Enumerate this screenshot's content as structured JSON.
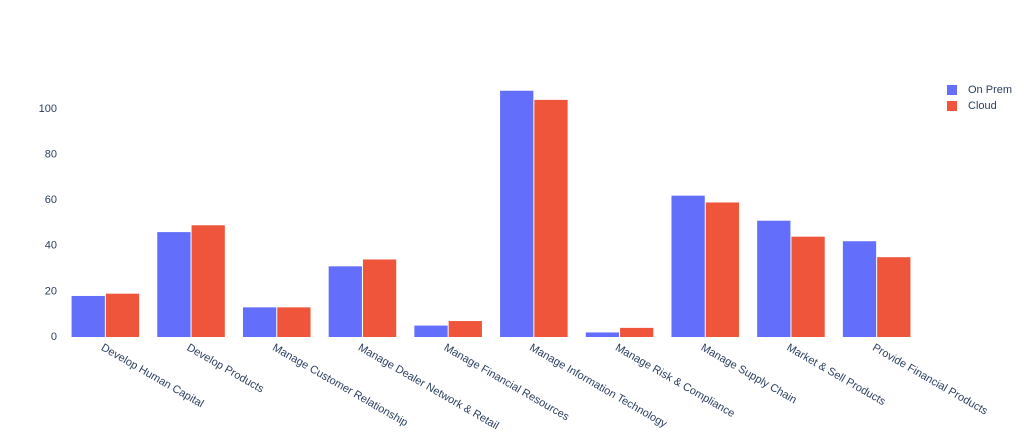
{
  "chart_data": {
    "type": "bar",
    "categories": [
      "Develop Human Capital",
      "Develop Products",
      "Manage Customer Relationship",
      "Manage Dealer Network & Retail",
      "Manage Financial Resources",
      "Manage Information Technology",
      "Manage Risk & Compliance",
      "Manage Supply Chain",
      "Market & Sell Products",
      "Provide Financial Products"
    ],
    "series": [
      {
        "name": "On Prem",
        "color": "#636efa",
        "values": [
          18,
          46,
          13,
          31,
          5,
          108,
          2,
          62,
          51,
          42
        ]
      },
      {
        "name": "Cloud",
        "color": "#ef553b",
        "values": [
          19,
          49,
          13,
          34,
          7,
          104,
          4,
          59,
          44,
          35
        ]
      }
    ],
    "ylim": [
      0,
      114
    ],
    "yticks": [
      0,
      20,
      40,
      60,
      80,
      100
    ],
    "grid": false,
    "legend": "top-right"
  }
}
